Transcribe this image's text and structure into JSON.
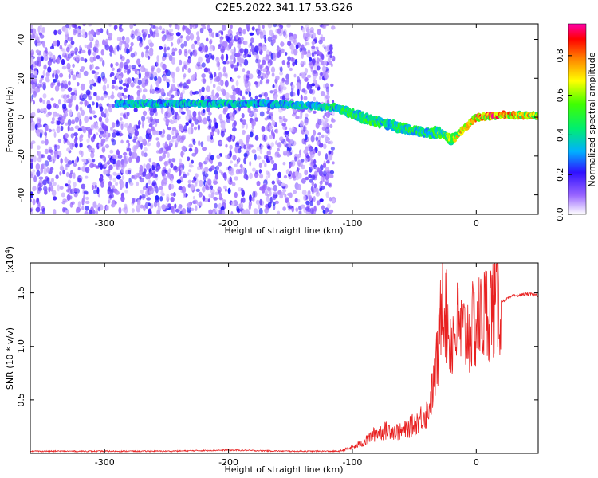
{
  "title": "C2E5.2022.341.17.53.G26",
  "chart_data": [
    {
      "type": "heatmap",
      "xlabel": "Height of straight line (km)",
      "ylabel": "Frequency (Hz)",
      "xlim": [
        -360,
        50
      ],
      "ylim": [
        -50,
        48
      ],
      "xticks": [
        "-300",
        "-200",
        "-100",
        "0"
      ],
      "xtick_values": [
        -300,
        -200,
        -100,
        0
      ],
      "yticks": [
        "-40",
        "-20",
        "0",
        "20",
        "40"
      ],
      "ytick_values": [
        -40,
        -20,
        0,
        20,
        40
      ],
      "colorbar": {
        "label": "Normalized spectral amplitude",
        "ticks": [
          "0.0",
          "0.2",
          "0.4",
          "0.6",
          "0.8"
        ],
        "tick_values": [
          0.0,
          0.2,
          0.4,
          0.6,
          0.8
        ],
        "range": [
          0,
          0.96
        ]
      },
      "noise_region": {
        "x": [
          -360,
          -115
        ],
        "frequency_range": [
          -50,
          48
        ],
        "amplitude": [
          0.0,
          0.2
        ]
      },
      "signal_track": {
        "x": [
          -290,
          -260,
          -230,
          -200,
          -170,
          -140,
          -115,
          -100,
          -85,
          -70,
          -55,
          -40,
          -30,
          -20,
          0,
          20,
          50
        ],
        "frequency": [
          7,
          7,
          7,
          7,
          7,
          6,
          5,
          2,
          -2,
          -4,
          -6,
          -8,
          -8,
          -12,
          0,
          1,
          1
        ],
        "amplitude": [
          0.35,
          0.4,
          0.38,
          0.4,
          0.38,
          0.4,
          0.45,
          0.5,
          0.5,
          0.45,
          0.5,
          0.45,
          0.55,
          0.6,
          0.9,
          0.8,
          0.7
        ]
      }
    },
    {
      "type": "line",
      "xlabel": "Height of straight line (km)",
      "ylabel": "SNR (10 * v/v)",
      "multiplier": "(x10^4)",
      "xlim": [
        -360,
        50
      ],
      "ylim": [
        0,
        1.78
      ],
      "xticks": [
        "-300",
        "-200",
        "-100",
        "0"
      ],
      "xtick_values": [
        -300,
        -200,
        -100,
        0
      ],
      "yticks": [
        "0.5",
        "1.0",
        "1.5"
      ],
      "ytick_values": [
        0.5,
        1.0,
        1.5
      ],
      "color": "#e82020",
      "x": [
        -360,
        -300,
        -250,
        -200,
        -150,
        -110,
        -100,
        -90,
        -80,
        -70,
        -60,
        -50,
        -40,
        -35,
        -30,
        -27,
        -25,
        -20,
        -15,
        -10,
        -5,
        0,
        10,
        20,
        30,
        40,
        50
      ],
      "y": [
        0.02,
        0.02,
        0.02,
        0.03,
        0.02,
        0.02,
        0.05,
        0.1,
        0.18,
        0.2,
        0.18,
        0.25,
        0.35,
        0.6,
        1.0,
        1.75,
        1.3,
        1.05,
        1.2,
        1.1,
        1.15,
        1.2,
        1.35,
        1.42,
        1.47,
        1.49,
        1.48
      ]
    }
  ]
}
